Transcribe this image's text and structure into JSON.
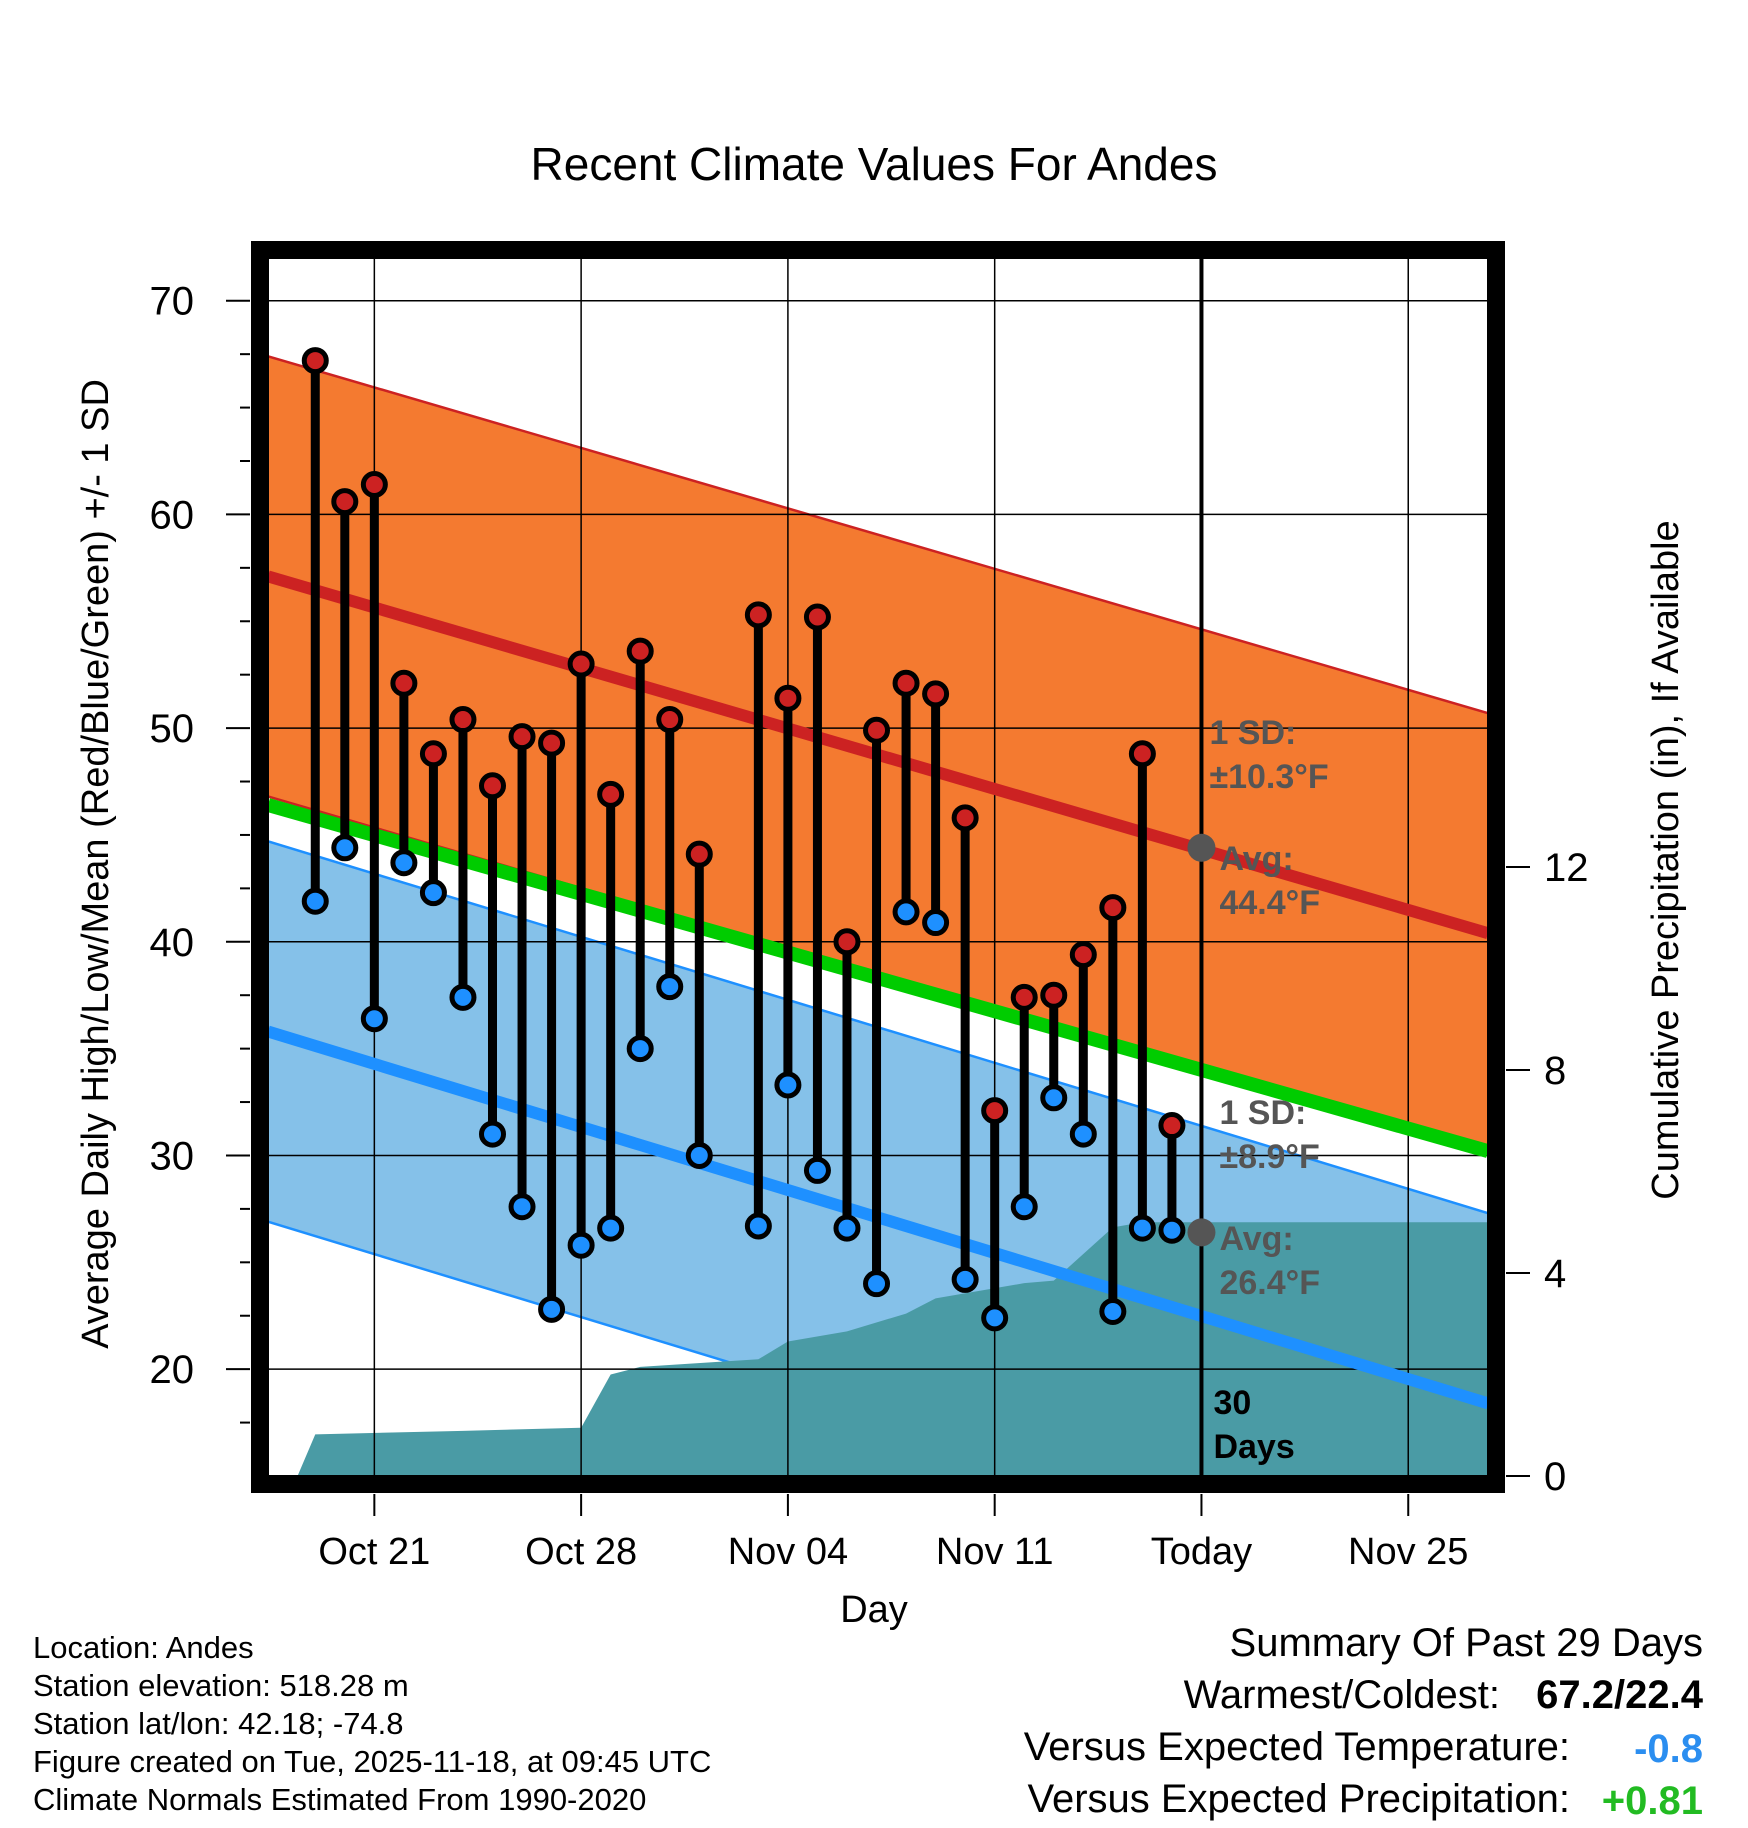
{
  "chart_data": {
    "type": "line",
    "title": "Recent Climate Values For Andes",
    "xlabel": "Day",
    "ylabel": "Average Daily High/Low/Mean (Red/Blue/Green) +/- 1 SD",
    "y2label": "Cumulative Precipitation (in), If Available",
    "ylim": [
      15,
      72
    ],
    "y2lim": [
      0,
      24
    ],
    "xlim": [
      -0.6,
      40.7
    ],
    "x_ticks": [
      {
        "day": 3,
        "label": "Oct 21"
      },
      {
        "day": 10,
        "label": "Oct 28"
      },
      {
        "day": 17,
        "label": "Nov 04"
      },
      {
        "day": 24,
        "label": "Nov 11"
      },
      {
        "day": 31,
        "label": "Today"
      },
      {
        "day": 38,
        "label": "Nov 25"
      }
    ],
    "y_ticks": [
      20,
      30,
      40,
      50,
      60,
      70
    ],
    "y2_ticks": [
      0,
      4,
      8,
      12
    ],
    "today_day": 31,
    "today_marker": "30\nDays",
    "normals": {
      "x_range": [
        -0.6,
        40.7
      ],
      "high_avg": [
        57.1,
        40.4
      ],
      "high_sd": 10.3,
      "low_avg": [
        35.8,
        18.4
      ],
      "low_sd": 8.9,
      "mean_avg": [
        46.4,
        30.2
      ]
    },
    "precipitation_cumulative": {
      "x": [
        0.4,
        1.0,
        6.0,
        10.0,
        11.0,
        12.0,
        16.0,
        17.0,
        19.0,
        21.0,
        22.0,
        25.0,
        26.0,
        28.0,
        29.0,
        38.0,
        40.7
      ],
      "values": [
        0.0,
        0.82,
        0.89,
        0.95,
        2.0,
        2.15,
        2.3,
        2.65,
        2.85,
        3.2,
        3.5,
        3.8,
        3.85,
        4.9,
        5.0,
        5.0,
        5.0
      ]
    },
    "daily_high": [
      67.2,
      60.6,
      61.4,
      52.1,
      48.8,
      50.4,
      47.3,
      49.6,
      49.3,
      53.0,
      46.9,
      53.6,
      50.4,
      44.1,
      null,
      55.3,
      51.4,
      55.2,
      40.0,
      49.9,
      52.1,
      51.6,
      45.8,
      32.1,
      37.4,
      37.5,
      39.4,
      41.6,
      48.8,
      31.4
    ],
    "daily_low": [
      41.9,
      44.4,
      36.4,
      43.7,
      42.3,
      37.4,
      31.0,
      27.6,
      22.8,
      25.8,
      26.6,
      35.0,
      37.9,
      30.0,
      null,
      26.7,
      33.3,
      29.3,
      26.6,
      24.0,
      41.4,
      40.9,
      24.2,
      22.4,
      27.6,
      32.7,
      31.0,
      22.7,
      26.6,
      26.5
    ],
    "annotations": {
      "high_sd_label": "1 SD:",
      "high_sd_value": "±10.3°F",
      "high_avg_label": "Avg:",
      "high_avg_value": "44.4°F",
      "low_sd_label": "1 SD:",
      "low_sd_value": "±8.9°F",
      "low_avg_label": "Avg:",
      "low_avg_value": "26.4°F",
      "today_high_avg": 44.4,
      "today_low_avg": 26.4
    }
  },
  "info": {
    "location": "Location: Andes",
    "elevation": "Station elevation: 518.28 m",
    "latlon": "Station lat/lon: 42.18; -74.8",
    "created": "Figure created on Tue, 2025-11-18, at 09:45 UTC",
    "normals": "Climate Normals Estimated From 1990-2020"
  },
  "summary": {
    "title": "Summary Of Past 29 Days",
    "warm_cold_label": "Warmest/Coldest:",
    "warm_cold_value": "67.2/22.4",
    "temp_label": "Versus Expected Temperature:",
    "temp_value": "-0.8",
    "precip_label": "Versus Expected Precipitation:",
    "precip_value": "+0.81"
  },
  "colors": {
    "high_band": "#f47a30",
    "high_line": "#cc2222",
    "low_band": "#85c1e9",
    "low_line": "#1e90ff",
    "mean_line": "#00cc00",
    "precip": "#4a9ba5",
    "high_dot": "#cc2222",
    "low_dot": "#1e90ff",
    "annotation": "#555555",
    "temp_value": "#2b8ef0",
    "precip_value": "#22bb22"
  }
}
